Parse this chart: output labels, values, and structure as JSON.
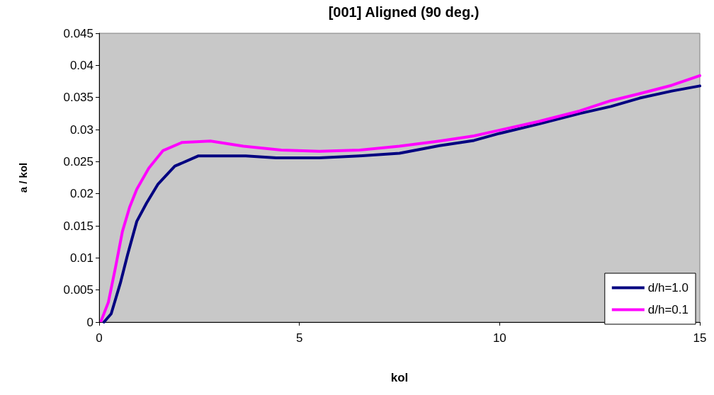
{
  "chart_data": {
    "type": "line",
    "title": "[001] Aligned (90 deg.)",
    "xlabel": "kol",
    "ylabel": "a / kol",
    "xlim": [
      0,
      15
    ],
    "xticks": [
      0,
      5,
      10,
      15
    ],
    "ylim": [
      0,
      0.045
    ],
    "yticks": [
      0,
      0.005,
      0.01,
      0.015,
      0.02,
      0.025,
      0.03,
      0.035,
      0.04,
      0.045
    ],
    "grid": false,
    "legend": "bottom right",
    "marker": "none",
    "line_style": "solid",
    "series": [
      {
        "name": "d/h=1.0",
        "color": "#000080",
        "x": [
          0.12,
          0.3,
          0.53,
          0.71,
          0.94,
          1.18,
          1.47,
          1.89,
          2.48,
          3.66,
          4.42,
          5.5,
          6.5,
          7.5,
          8.5,
          9.36,
          10,
          11,
          12,
          12.78,
          13.5,
          14.3,
          15
        ],
        "values": [
          0,
          0.0013,
          0.0061,
          0.0105,
          0.0157,
          0.0185,
          0.0215,
          0.0243,
          0.0259,
          0.0259,
          0.0256,
          0.0256,
          0.0259,
          0.0263,
          0.0275,
          0.0283,
          0.0294,
          0.0309,
          0.0325,
          0.0336,
          0.0349,
          0.036,
          0.0368
        ]
      },
      {
        "name": "d/h=0.1",
        "color": "#ff00ff",
        "x": [
          0.05,
          0.23,
          0.41,
          0.58,
          0.76,
          0.94,
          1.24,
          1.59,
          2.07,
          2.78,
          3.6,
          4.55,
          5.5,
          6.5,
          7.5,
          8.5,
          9.36,
          10,
          11,
          12,
          12.78,
          13.5,
          14.3,
          15
        ],
        "values": [
          0.0002,
          0.0031,
          0.0086,
          0.0141,
          0.0179,
          0.0207,
          0.024,
          0.0267,
          0.028,
          0.0282,
          0.0274,
          0.0268,
          0.0266,
          0.0268,
          0.0274,
          0.0282,
          0.029,
          0.0299,
          0.0313,
          0.0329,
          0.0345,
          0.0356,
          0.0369,
          0.0384
        ]
      }
    ]
  }
}
